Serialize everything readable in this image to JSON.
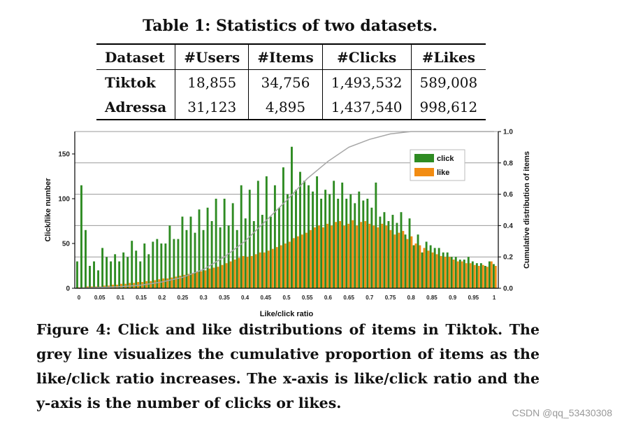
{
  "table": {
    "caption": "Table 1: Statistics of two datasets.",
    "headers": [
      "Dataset",
      "#Users",
      "#Items",
      "#Clicks",
      "#Likes"
    ],
    "rows": [
      [
        "Tiktok",
        "18,855",
        "34,756",
        "1,493,532",
        "589,008"
      ],
      [
        "Adressa",
        "31,123",
        "4,895",
        "1,437,540",
        "998,612"
      ]
    ]
  },
  "figure": {
    "caption": "Figure 4: Click and like distributions of items in Tiktok. The grey line visualizes the cumulative proportion of items as the like/click ratio increases. The x-axis is like/click ratio and the y-axis is the number of clicks or likes."
  },
  "watermark": "CSDN @qq_53430308",
  "chart_data": {
    "type": "bar",
    "xlabel": "Like/click ratio",
    "ylabel": "Click/like number",
    "y2label": "Cumulative distribution of items",
    "ylim": [
      0,
      175
    ],
    "y2lim": [
      0,
      1.0
    ],
    "xlim": [
      -0.01,
      1.01
    ],
    "yticks": [
      0,
      50,
      100,
      150
    ],
    "y2ticks": [
      "0.0",
      "0.2",
      "0.4",
      "0.6",
      "0.8",
      "1.0"
    ],
    "xticks": [
      "0",
      "0.05",
      "0.1",
      "0.15",
      "0.2",
      "0.25",
      "0.3",
      "0.35",
      "0.4",
      "0.45",
      "0.5",
      "0.55",
      "0.6",
      "0.65",
      "0.7",
      "0.75",
      "0.8",
      "0.85",
      "0.9",
      "0.95",
      "1"
    ],
    "grid": "horizontal",
    "legend_position": "top-right",
    "colors": {
      "click": "#2e8b22",
      "like": "#f28c12",
      "cumulative": "#a6a6a6"
    },
    "series": [
      {
        "name": "click",
        "values": [
          30,
          115,
          65,
          25,
          30,
          20,
          45,
          35,
          30,
          38,
          30,
          40,
          35,
          53,
          42,
          30,
          50,
          38,
          52,
          55,
          50,
          50,
          70,
          55,
          55,
          80,
          65,
          80,
          62,
          88,
          65,
          90,
          75,
          100,
          68,
          100,
          70,
          95,
          65,
          115,
          78,
          110,
          75,
          120,
          82,
          125,
          80,
          115,
          90,
          135,
          105,
          158,
          110,
          130,
          120,
          115,
          108,
          125,
          100,
          110,
          105,
          120,
          100,
          118,
          100,
          105,
          95,
          108,
          98,
          100,
          90,
          118,
          80,
          85,
          75,
          82,
          73,
          85,
          60,
          78,
          48,
          60,
          40,
          52,
          48,
          45,
          45,
          40,
          40,
          35,
          35,
          32,
          32,
          35,
          30,
          28,
          28,
          25,
          30,
          27
        ]
      },
      {
        "name": "like",
        "values": [
          1,
          1,
          2,
          2,
          2,
          2,
          3,
          3,
          4,
          4,
          5,
          5,
          6,
          6,
          7,
          7,
          8,
          8,
          9,
          10,
          11,
          11,
          12,
          13,
          14,
          15,
          16,
          17,
          18,
          19,
          20,
          22,
          23,
          24,
          26,
          28,
          30,
          32,
          34,
          36,
          35,
          36,
          38,
          40,
          40,
          42,
          44,
          46,
          48,
          50,
          52,
          56,
          58,
          60,
          62,
          65,
          68,
          70,
          68,
          72,
          70,
          74,
          75,
          70,
          72,
          76,
          70,
          74,
          75,
          72,
          70,
          68,
          72,
          70,
          65,
          60,
          62,
          64,
          55,
          58,
          50,
          48,
          45,
          42,
          40,
          38,
          36,
          35,
          35,
          32,
          30,
          30,
          28,
          28,
          26,
          25,
          26,
          24,
          30,
          25
        ]
      }
    ],
    "cumulative": {
      "x": [
        0,
        0.05,
        0.1,
        0.15,
        0.2,
        0.25,
        0.3,
        0.35,
        0.4,
        0.45,
        0.5,
        0.55,
        0.6,
        0.65,
        0.7,
        0.75,
        0.8,
        1.0
      ],
      "y": [
        0.0,
        0.005,
        0.01,
        0.02,
        0.04,
        0.07,
        0.12,
        0.2,
        0.3,
        0.43,
        0.56,
        0.7,
        0.81,
        0.9,
        0.95,
        0.985,
        1.0,
        1.0
      ]
    }
  }
}
